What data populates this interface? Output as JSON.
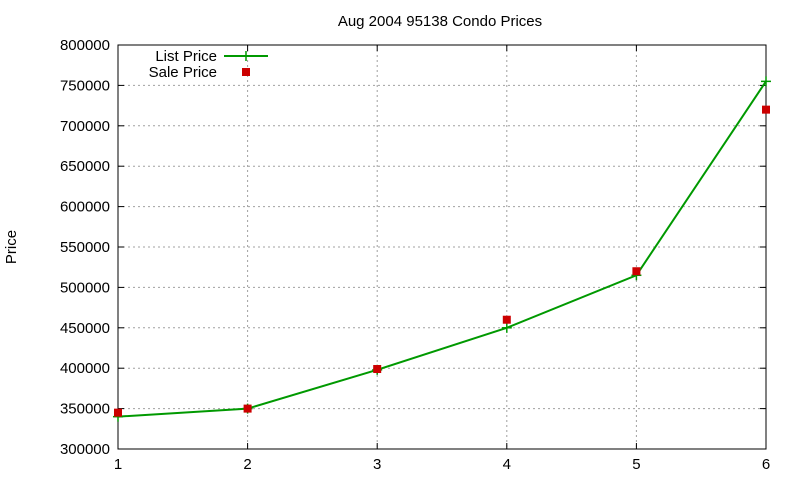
{
  "chart_data": {
    "type": "line",
    "title": "Aug 2004 95138 Condo Prices",
    "xlabel": "",
    "ylabel": "Price",
    "x": [
      1,
      2,
      3,
      4,
      5,
      6
    ],
    "xlim": [
      1,
      6
    ],
    "ylim": [
      300000,
      800000
    ],
    "yticks": [
      300000,
      350000,
      400000,
      450000,
      500000,
      550000,
      600000,
      650000,
      700000,
      750000,
      800000
    ],
    "xticks": [
      1,
      2,
      3,
      4,
      5,
      6
    ],
    "grid": true,
    "legend_position": "top-left",
    "series": [
      {
        "name": "List Price",
        "style": "linespoints",
        "marker": "plus",
        "color": "#009900",
        "values": [
          340000,
          350000,
          398000,
          450000,
          515000,
          755000
        ]
      },
      {
        "name": "Sale Price",
        "style": "points",
        "marker": "square",
        "color": "#cc0000",
        "values": [
          345000,
          350000,
          399000,
          460000,
          520000,
          720000
        ]
      }
    ]
  }
}
